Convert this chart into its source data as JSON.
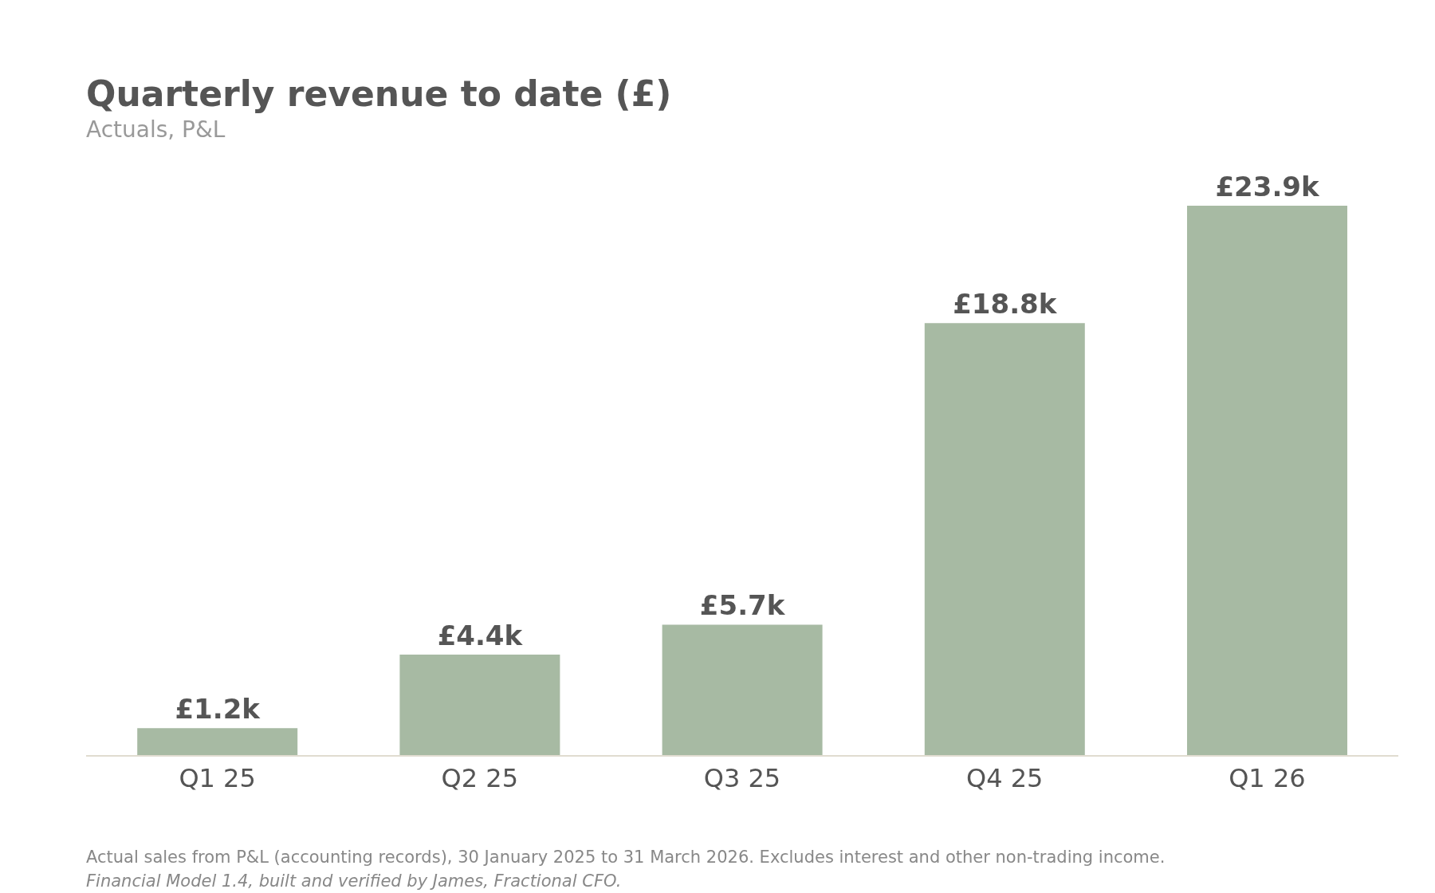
{
  "chart_data": {
    "type": "bar",
    "title": "Quarterly revenue to date (£)",
    "subtitle": "Actuals, P&L",
    "categories": [
      "Q1 25",
      "Q2 25",
      "Q3 25",
      "Q4 25",
      "Q1 26"
    ],
    "values": [
      1.2,
      4.4,
      5.7,
      18.8,
      23.9
    ],
    "value_labels": [
      "£1.2k",
      "£4.4k",
      "£5.7k",
      "£18.8k",
      "£23.9k"
    ],
    "color": "#a7baa3",
    "tick_labels": "x",
    "grid": false,
    "legend": false,
    "annotations": [
      "Actual sales from P&L (accounting records), 30 January 2025 to 31 March 2026. Excludes interest and other non-trading income.",
      "Financial Model 1.4, built and verified by James, Fractional CFO."
    ]
  }
}
